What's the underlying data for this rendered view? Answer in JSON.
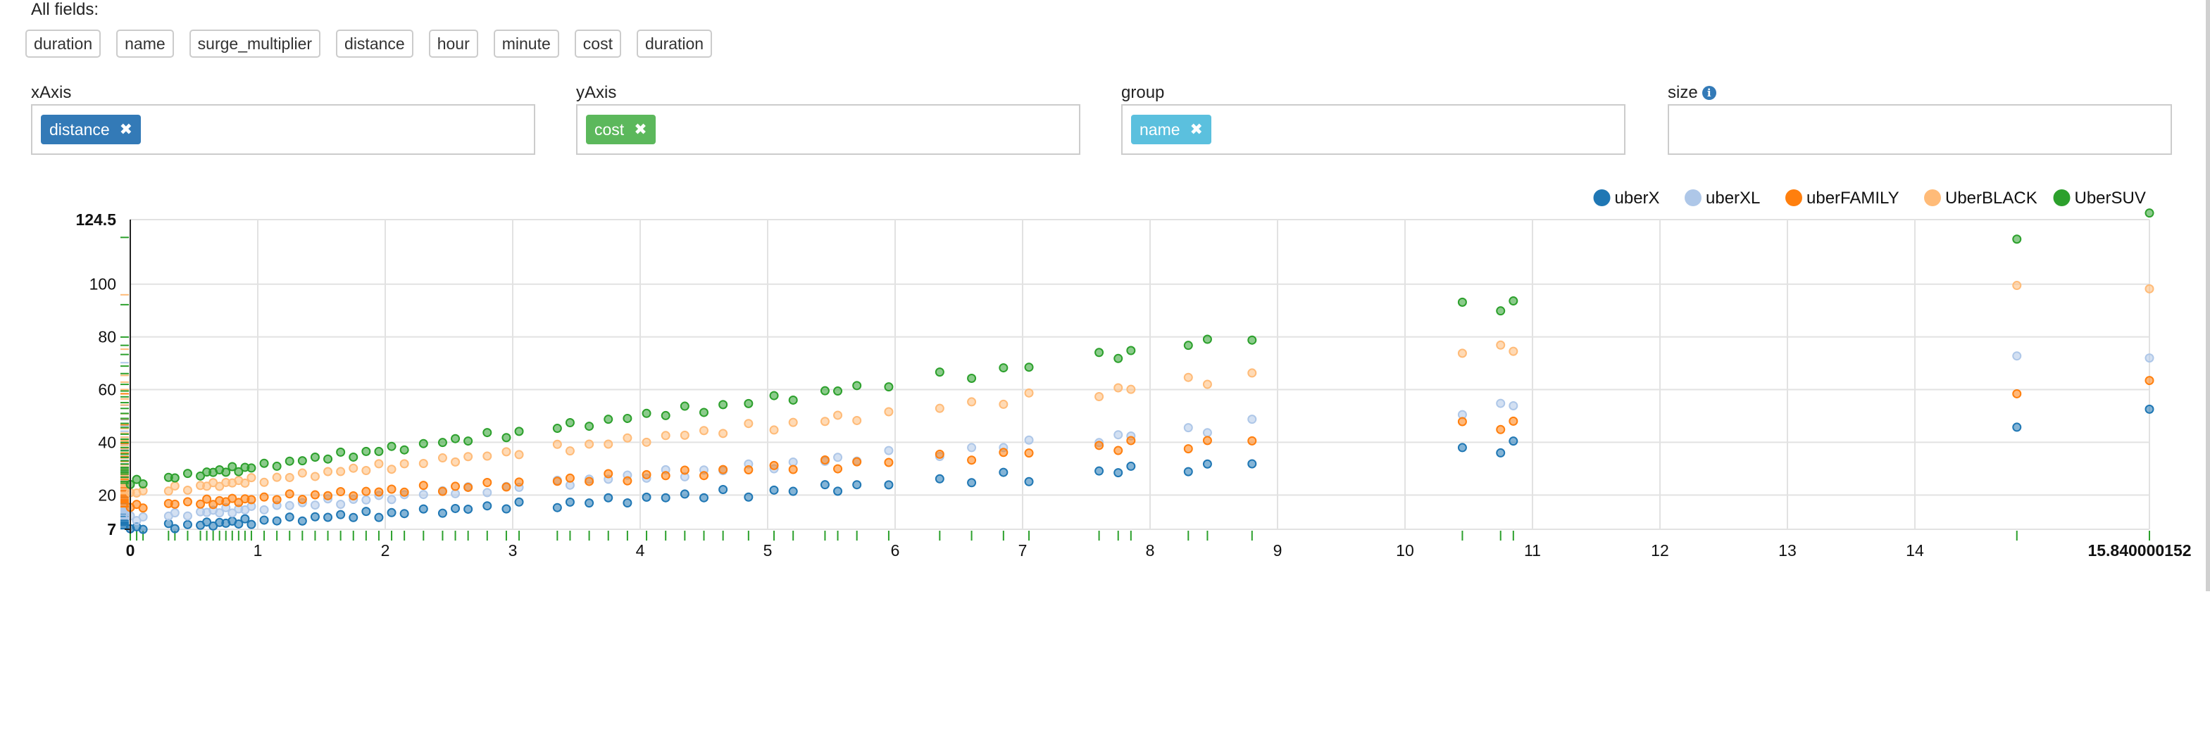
{
  "fields": {
    "title": "All fields:",
    "items": [
      "duration",
      "name",
      "surge_multiplier",
      "distance",
      "hour",
      "minute",
      "cost",
      "duration"
    ]
  },
  "encodings": [
    {
      "label": "xAxis",
      "tag": "distance",
      "color": "#337ab7",
      "info": false
    },
    {
      "label": "yAxis",
      "tag": "cost",
      "color": "#5cb85c",
      "info": false
    },
    {
      "label": "group",
      "tag": "name",
      "color": "#5bc0de",
      "info": false
    },
    {
      "label": "size",
      "tag": "",
      "color": "",
      "info": true
    }
  ],
  "icons": {
    "remove": "times-icon",
    "info": "info-circle-icon"
  },
  "chart_data": {
    "type": "scatter",
    "xlim": [
      0,
      15.840000152
    ],
    "ylim": [
      7,
      124.5
    ],
    "x_ticks": [
      "0",
      "1",
      "2",
      "3",
      "4",
      "5",
      "6",
      "7",
      "8",
      "9",
      "10",
      "11",
      "12",
      "13",
      "14",
      "15.840000152"
    ],
    "y_ticks": [
      "7",
      "20",
      "40",
      "60",
      "80",
      "100",
      "124.5"
    ],
    "legend_position": "top-right",
    "grid": true,
    "rug": true,
    "x_samples": [
      0.0,
      0.05,
      0.1,
      0.3,
      0.35,
      0.45,
      0.55,
      0.6,
      0.65,
      0.7,
      0.75,
      0.8,
      0.85,
      0.9,
      0.95,
      1.05,
      1.15,
      1.25,
      1.35,
      1.45,
      1.55,
      1.65,
      1.75,
      1.85,
      1.95,
      2.05,
      2.15,
      2.3,
      2.45,
      2.55,
      2.65,
      2.8,
      2.95,
      3.05,
      3.35,
      3.45,
      3.6,
      3.75,
      3.9,
      4.05,
      4.2,
      4.35,
      4.5,
      4.65,
      4.85,
      5.05,
      5.2,
      5.45,
      5.55,
      5.7,
      5.95,
      6.35,
      6.6,
      6.85,
      7.05,
      7.6,
      7.75,
      7.85,
      8.3,
      8.45,
      8.8,
      10.45,
      10.75,
      10.85,
      14.8,
      15.84
    ],
    "series": [
      {
        "name": "uberX",
        "color": "#1f77b4",
        "intercept": 7.2,
        "slope": 2.8
      },
      {
        "name": "uberXL",
        "color": "#aec7e8",
        "intercept": 11.0,
        "slope": 4.0
      },
      {
        "name": "uberFAMILY",
        "color": "#ff7f0e",
        "intercept": 15.5,
        "slope": 2.9
      },
      {
        "name": "UberBLACK",
        "color": "#ffbb78",
        "intercept": 20.5,
        "slope": 5.1
      },
      {
        "name": "UberSUV",
        "color": "#2ca02c",
        "intercept": 24.5,
        "slope": 6.3
      }
    ]
  }
}
